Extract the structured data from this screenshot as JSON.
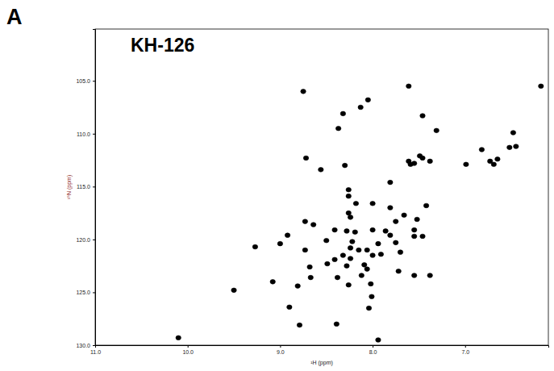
{
  "chart_data": {
    "type": "scatter",
    "panel": "A",
    "title": "KH-126",
    "x_label": "¹H (ppm)",
    "y_label": "¹⁵N (ppm)",
    "color": "#000000",
    "marker": "circle",
    "grid": false,
    "xlim": [
      11.0,
      6.1
    ],
    "ylim": [
      130.0,
      100.1
    ],
    "xticks": [
      {
        "value": 11,
        "label": "11.0"
      },
      {
        "value": 10,
        "label": "10.0"
      },
      {
        "value": 9,
        "label": "9.0"
      },
      {
        "value": 8,
        "label": "8.0"
      },
      {
        "value": 7,
        "label": "7.0"
      }
    ],
    "yticks": [
      {
        "value": 105,
        "label": "105.0"
      },
      {
        "value": 110,
        "label": "110.0"
      },
      {
        "value": 115,
        "label": "115.0"
      },
      {
        "value": 120,
        "label": "120.0"
      },
      {
        "value": 125,
        "label": "125.0"
      },
      {
        "value": 130,
        "label": "130.0"
      }
    ],
    "x": [
      7.61,
      8.75,
      8.05,
      8.32,
      8.13,
      7.46,
      8.37,
      7.31,
      6.48,
      8.72,
      8.3,
      7.81,
      8.56,
      7.61,
      7.55,
      7.46,
      7.49,
      7.38,
      7.59,
      6.73,
      6.65,
      6.69,
      6.52,
      6.45,
      6.82,
      6.99,
      8.26,
      8.26,
      8.18,
      8.0,
      8.26,
      8.24,
      7.81,
      7.66,
      8.73,
      8.64,
      8.41,
      8.28,
      8.0,
      7.86,
      7.81,
      7.55,
      7.46,
      8.19,
      8.92,
      9.0,
      9.27,
      8.73,
      8.5,
      8.22,
      7.94,
      7.75,
      7.7,
      8.24,
      8.15,
      8.06,
      8.32,
      8.41,
      8.24,
      8.0,
      7.91,
      8.49,
      8.28,
      8.09,
      8.06,
      8.68,
      8.38,
      8.12,
      8.67,
      7.72,
      8.26,
      8.02,
      7.38,
      9.08,
      8.81,
      8.01,
      8.04,
      8.9,
      8.79,
      8.39,
      10.1,
      7.94,
      9.5,
      7.42,
      7.75,
      7.52,
      7.55,
      6.18,
      7.55
    ],
    "values": [
      105.5,
      106.0,
      106.8,
      108.1,
      107.5,
      108.3,
      109.5,
      109.7,
      109.9,
      112.3,
      113.0,
      114.6,
      113.4,
      112.6,
      112.8,
      112.3,
      112.1,
      112.6,
      112.9,
      112.6,
      112.4,
      112.9,
      111.3,
      111.2,
      111.5,
      112.9,
      115.3,
      115.9,
      116.6,
      116.6,
      117.5,
      117.9,
      117.0,
      117.7,
      118.3,
      118.6,
      119.1,
      119.2,
      119.1,
      119.2,
      119.6,
      119.7,
      119.7,
      119.3,
      119.6,
      120.4,
      120.7,
      121.0,
      120.1,
      120.2,
      120.4,
      120.3,
      121.2,
      120.8,
      121.0,
      121.0,
      121.5,
      121.9,
      121.8,
      121.5,
      121.4,
      122.3,
      122.5,
      122.4,
      122.8,
      122.6,
      123.6,
      123.4,
      123.6,
      123.0,
      124.3,
      124.2,
      123.4,
      124.0,
      124.4,
      125.4,
      126.5,
      126.4,
      128.1,
      128.0,
      129.3,
      129.5,
      124.8,
      116.8,
      118.3,
      118.1,
      119.1,
      105.5,
      123.4
    ]
  }
}
